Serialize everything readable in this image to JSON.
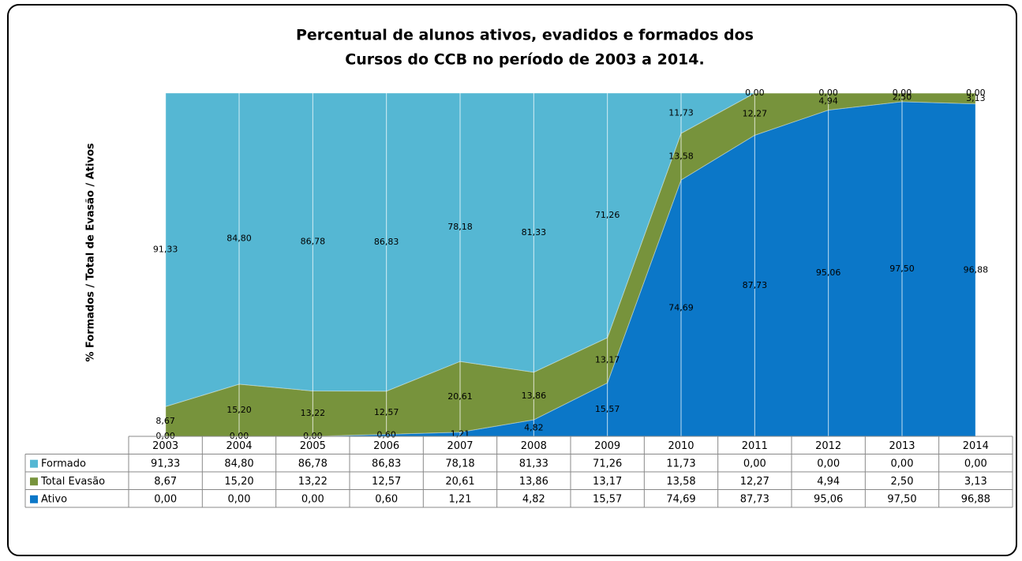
{
  "chart_data": {
    "type": "area",
    "title": "Percentual de alunos ativos, evadidos e formados dos",
    "subtitle": "Cursos do CCB no período de 2003 a 2014.",
    "y_label": "% Formados / Total de Evasão / Ativos",
    "stacked": true,
    "categories": [
      "2003",
      "2004",
      "2005",
      "2006",
      "2007",
      "2008",
      "2009",
      "2010",
      "2011",
      "2012",
      "2013",
      "2014"
    ],
    "ylim": [
      0,
      100
    ],
    "series": [
      {
        "name": "Formado",
        "color": "#55b7d3",
        "values": [
          91.33,
          84.8,
          86.78,
          86.83,
          78.18,
          81.33,
          71.26,
          11.73,
          0,
          0,
          0,
          0
        ],
        "value_labels": [
          "91,33",
          "84,80",
          "86,78",
          "86,83",
          "78,18",
          "81,33",
          "71,26",
          "11,73",
          "0,00",
          "0,00",
          "0,00",
          "0,00"
        ]
      },
      {
        "name": "Total Evasão",
        "color": "#77933c",
        "values": [
          8.67,
          15.2,
          13.22,
          12.57,
          20.61,
          13.86,
          13.17,
          13.58,
          12.27,
          4.94,
          2.5,
          3.13
        ],
        "value_labels": [
          "8,67",
          "15,20",
          "13,22",
          "12,57",
          "20,61",
          "13,86",
          "13,17",
          "13,58",
          "12,27",
          "4,94",
          "2,50",
          "3,13"
        ]
      },
      {
        "name": "Ativo",
        "color": "#0b77c8",
        "values": [
          0,
          0,
          0,
          0.6,
          1.21,
          4.82,
          15.57,
          74.69,
          87.73,
          95.06,
          97.5,
          96.88
        ],
        "value_labels": [
          "0,00",
          "0,00",
          "0,00",
          "0,60",
          "1,21",
          "4,82",
          "15,57",
          "74,69",
          "87,73",
          "95,06",
          "97,50",
          "96,88"
        ]
      }
    ]
  }
}
